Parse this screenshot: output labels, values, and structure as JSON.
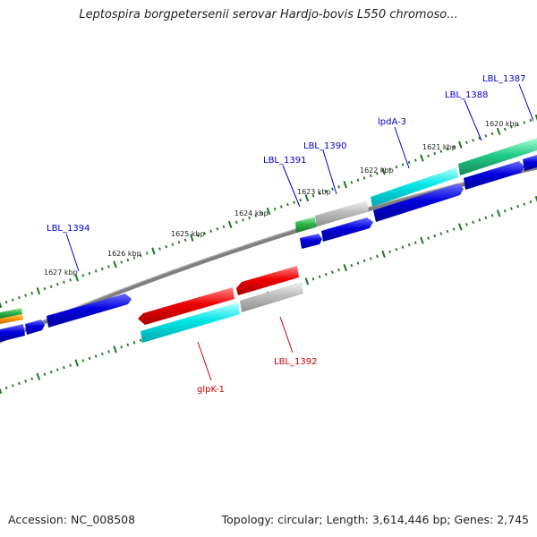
{
  "title": "Leptospira borgpetersenii serovar Hardjo-bovis L550 chromoso...",
  "footer": {
    "accession": "Accession: NC_008508",
    "summary": "Topology: circular; Length: 3,614,446 bp; Genes: 2,745"
  },
  "colors": {
    "backbone": "#808080",
    "ticks": "#1a7a1a",
    "forward_label": "#0000cc",
    "reverse_label": "#cc0000",
    "cds_blue": "#0000dd",
    "rrna_cyan": "#00e5e5",
    "pseudo_gray": "#b5b5b5",
    "red_gene": "#ee0000",
    "green_gene": "#2fb64a",
    "teal_gene": "#22cc88",
    "orange_gene": "#ff9900"
  },
  "scale_labels": [
    "1620 kbp",
    "1621 kbp",
    "1622 kbp",
    "1623 kbp",
    "1624 kbp",
    "1625 kbp",
    "1626 kbp",
    "1627 kbp"
  ],
  "forward_gene_labels": [
    "LBL_1387",
    "LBL_1388",
    "lpdA-3",
    "LBL_1390",
    "LBL_1391",
    "LBL_1394"
  ],
  "reverse_gene_labels": [
    "LBL_1392",
    "glpK-1"
  ]
}
